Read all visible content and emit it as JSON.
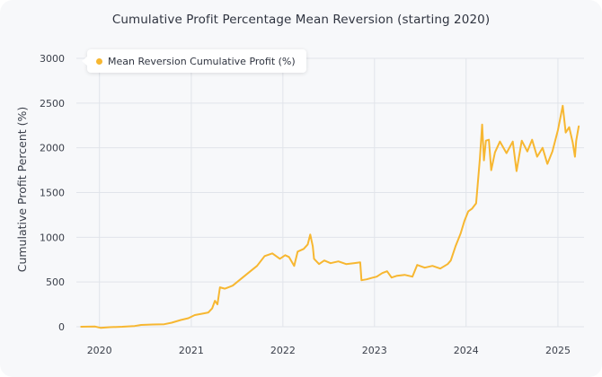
{
  "chart_data": {
    "type": "line",
    "title": "Cumulative Profit Percentage Mean Reversion (starting 2020)",
    "ylabel": "Cumulative Profit Percent (%)",
    "xlabel": "",
    "ylim": [
      0,
      3000
    ],
    "xlim": [
      "2019-10-01",
      "2025-04-15"
    ],
    "grid": true,
    "legend_position": "top-left",
    "x_ticks": [
      "2020",
      "2021",
      "2022",
      "2023",
      "2024",
      "2025"
    ],
    "y_ticks": [
      "0",
      "500",
      "1000",
      "1500",
      "2000",
      "2500",
      "3000"
    ],
    "series": [
      {
        "name": "Mean Reversion Cumulative Profit (%)",
        "color": "#f7b731",
        "points": [
          [
            "2019-10-20",
            0
          ],
          [
            "2019-12-15",
            2
          ],
          [
            "2020-01-05",
            -12
          ],
          [
            "2020-02-10",
            -5
          ],
          [
            "2020-04-01",
            0
          ],
          [
            "2020-05-20",
            8
          ],
          [
            "2020-06-15",
            20
          ],
          [
            "2020-08-01",
            25
          ],
          [
            "2020-09-15",
            28
          ],
          [
            "2020-10-15",
            45
          ],
          [
            "2020-11-20",
            75
          ],
          [
            "2020-12-20",
            95
          ],
          [
            "2021-01-15",
            130
          ],
          [
            "2021-02-20",
            150
          ],
          [
            "2021-03-10",
            160
          ],
          [
            "2021-03-25",
            205
          ],
          [
            "2021-04-05",
            290
          ],
          [
            "2021-04-15",
            250
          ],
          [
            "2021-04-25",
            440
          ],
          [
            "2021-05-15",
            425
          ],
          [
            "2021-06-15",
            460
          ],
          [
            "2021-07-20",
            540
          ],
          [
            "2021-08-20",
            610
          ],
          [
            "2021-09-20",
            680
          ],
          [
            "2021-10-20",
            790
          ],
          [
            "2021-11-20",
            820
          ],
          [
            "2021-12-20",
            760
          ],
          [
            "2022-01-10",
            800
          ],
          [
            "2022-01-25",
            780
          ],
          [
            "2022-02-15",
            680
          ],
          [
            "2022-03-01",
            840
          ],
          [
            "2022-03-25",
            870
          ],
          [
            "2022-04-10",
            920
          ],
          [
            "2022-04-20",
            1030
          ],
          [
            "2022-04-30",
            900
          ],
          [
            "2022-05-05",
            760
          ],
          [
            "2022-05-25",
            700
          ],
          [
            "2022-06-15",
            740
          ],
          [
            "2022-07-10",
            710
          ],
          [
            "2022-08-10",
            730
          ],
          [
            "2022-09-10",
            700
          ],
          [
            "2022-10-10",
            710
          ],
          [
            "2022-11-05",
            720
          ],
          [
            "2022-11-10",
            520
          ],
          [
            "2022-12-01",
            530
          ],
          [
            "2022-12-20",
            545
          ],
          [
            "2023-01-10",
            560
          ],
          [
            "2023-02-01",
            600
          ],
          [
            "2023-02-20",
            620
          ],
          [
            "2023-03-10",
            550
          ],
          [
            "2023-04-01",
            570
          ],
          [
            "2023-05-01",
            580
          ],
          [
            "2023-06-01",
            560
          ],
          [
            "2023-06-20",
            690
          ],
          [
            "2023-07-20",
            660
          ],
          [
            "2023-08-20",
            680
          ],
          [
            "2023-09-20",
            650
          ],
          [
            "2023-10-20",
            700
          ],
          [
            "2023-11-01",
            740
          ],
          [
            "2023-11-20",
            900
          ],
          [
            "2023-12-10",
            1040
          ],
          [
            "2023-12-25",
            1180
          ],
          [
            "2024-01-10",
            1290
          ],
          [
            "2024-01-25",
            1320
          ],
          [
            "2024-02-10",
            1380
          ],
          [
            "2024-02-25",
            1880
          ],
          [
            "2024-03-05",
            2260
          ],
          [
            "2024-03-12",
            1860
          ],
          [
            "2024-03-20",
            2080
          ],
          [
            "2024-04-01",
            2090
          ],
          [
            "2024-04-10",
            1750
          ],
          [
            "2024-04-25",
            1950
          ],
          [
            "2024-05-15",
            2070
          ],
          [
            "2024-06-10",
            1940
          ],
          [
            "2024-07-05",
            2070
          ],
          [
            "2024-07-20",
            1740
          ],
          [
            "2024-08-10",
            2080
          ],
          [
            "2024-09-01",
            1960
          ],
          [
            "2024-09-20",
            2090
          ],
          [
            "2024-10-10",
            1900
          ],
          [
            "2024-11-01",
            2000
          ],
          [
            "2024-11-20",
            1820
          ],
          [
            "2024-12-10",
            1960
          ],
          [
            "2025-01-01",
            2200
          ],
          [
            "2025-01-20",
            2470
          ],
          [
            "2025-02-01",
            2170
          ],
          [
            "2025-02-15",
            2230
          ],
          [
            "2025-03-01",
            2060
          ],
          [
            "2025-03-10",
            1900
          ],
          [
            "2025-03-15",
            2080
          ],
          [
            "2025-03-25",
            2240
          ]
        ]
      }
    ]
  }
}
